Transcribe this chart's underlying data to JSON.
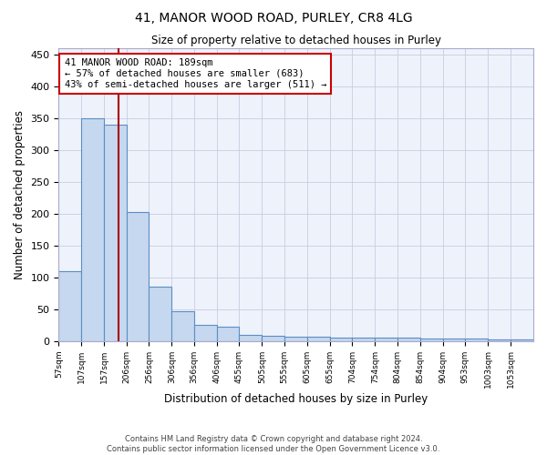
{
  "title1": "41, MANOR WOOD ROAD, PURLEY, CR8 4LG",
  "title2": "Size of property relative to detached houses in Purley",
  "xlabel": "Distribution of detached houses by size in Purley",
  "ylabel": "Number of detached properties",
  "footer1": "Contains HM Land Registry data © Crown copyright and database right 2024.",
  "footer2": "Contains public sector information licensed under the Open Government Licence v3.0.",
  "bin_labels": [
    "57sqm",
    "107sqm",
    "157sqm",
    "206sqm",
    "256sqm",
    "306sqm",
    "356sqm",
    "406sqm",
    "455sqm",
    "505sqm",
    "555sqm",
    "605sqm",
    "655sqm",
    "704sqm",
    "754sqm",
    "804sqm",
    "854sqm",
    "904sqm",
    "953sqm",
    "1003sqm",
    "1053sqm"
  ],
  "bin_edges": [
    57,
    107,
    157,
    206,
    256,
    306,
    356,
    406,
    455,
    505,
    555,
    605,
    655,
    704,
    754,
    804,
    854,
    904,
    953,
    1003,
    1053,
    1103
  ],
  "bar_heights": [
    110,
    350,
    340,
    202,
    85,
    47,
    25,
    22,
    10,
    8,
    6,
    6,
    5,
    5,
    5,
    5,
    4,
    4,
    4,
    3,
    3
  ],
  "bar_color": "#c6d8ef",
  "bar_edge_color": "#5b8ec4",
  "property_sqm": 189,
  "property_line_color": "#aa0000",
  "annotation_line1": "41 MANOR WOOD ROAD: 189sqm",
  "annotation_line2": "← 57% of detached houses are smaller (683)",
  "annotation_line3": "43% of semi-detached houses are larger (511) →",
  "annotation_box_color": "#cc0000",
  "annotation_text_color": "#000000",
  "ylim": [
    0,
    460
  ],
  "xlim": [
    57,
    1103
  ],
  "background_color": "#eef2fb",
  "grid_color": "#c8cce0",
  "yticks": [
    0,
    50,
    100,
    150,
    200,
    250,
    300,
    350,
    400,
    450
  ]
}
